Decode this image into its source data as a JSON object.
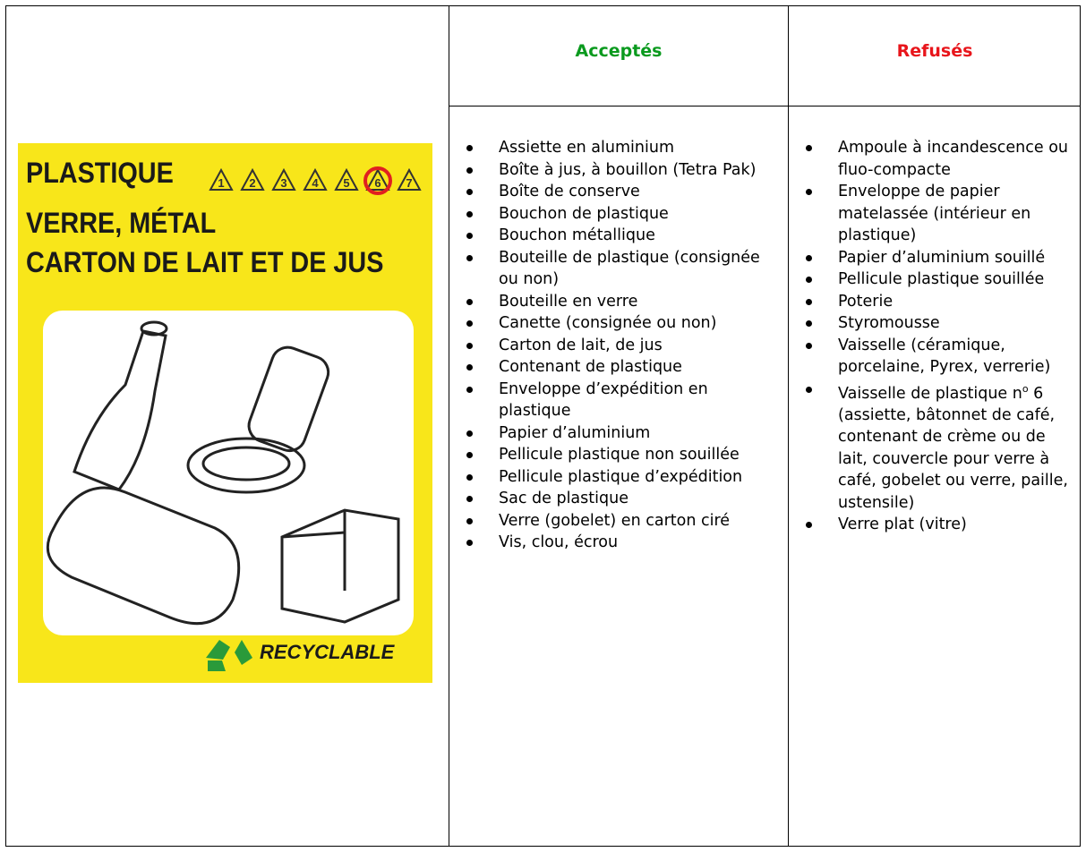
{
  "header": {
    "accepted": "Acceptés",
    "refused": "Refusés"
  },
  "poster": {
    "lines": [
      "PLASTIQUE",
      "VERRE, MÉTAL",
      "CARTON DE LAIT ET DE JUS"
    ],
    "resin_codes": [
      "1",
      "2",
      "3",
      "4",
      "5",
      "6",
      "7"
    ],
    "label": "RECYCLABLE"
  },
  "accepted": [
    "Assiette en aluminium",
    "Boîte à jus, à bouillon (Tetra Pak)",
    "Boîte de conserve",
    "Bouchon de plastique",
    "Bouchon métallique",
    "Bouteille de plastique (consignée ou non)",
    "Bouteille en verre",
    "Canette (consignée ou non)",
    "Carton de lait, de jus",
    "Contenant de plastique",
    "Enveloppe d’expédition en plastique",
    "Papier d’aluminium",
    "Pellicule plastique non souillée",
    "Pellicule plastique d’expédition",
    "Sac de plastique",
    "Verre (gobelet) en carton ciré",
    "Vis, clou, écrou"
  ],
  "refused": [
    "Ampoule à incandescence ou fluo-compacte",
    "Enveloppe de papier matelassée (intérieur en plastique)",
    "Papier d’aluminium souillé",
    "Pellicule plastique souillée",
    "Poterie",
    "Styromousse",
    "Vaisselle (céramique, porcelaine, Pyrex, verrerie)",
    {
      "before": "Vaisselle de plastique n",
      "sup": "o",
      "after": " 6 (assiette, bâtonnet de café, contenant de crème ou de lait, couvercle pour verre à café, gobelet ou verre, paille, ustensile)"
    },
    "Verre plat (vitre)"
  ]
}
